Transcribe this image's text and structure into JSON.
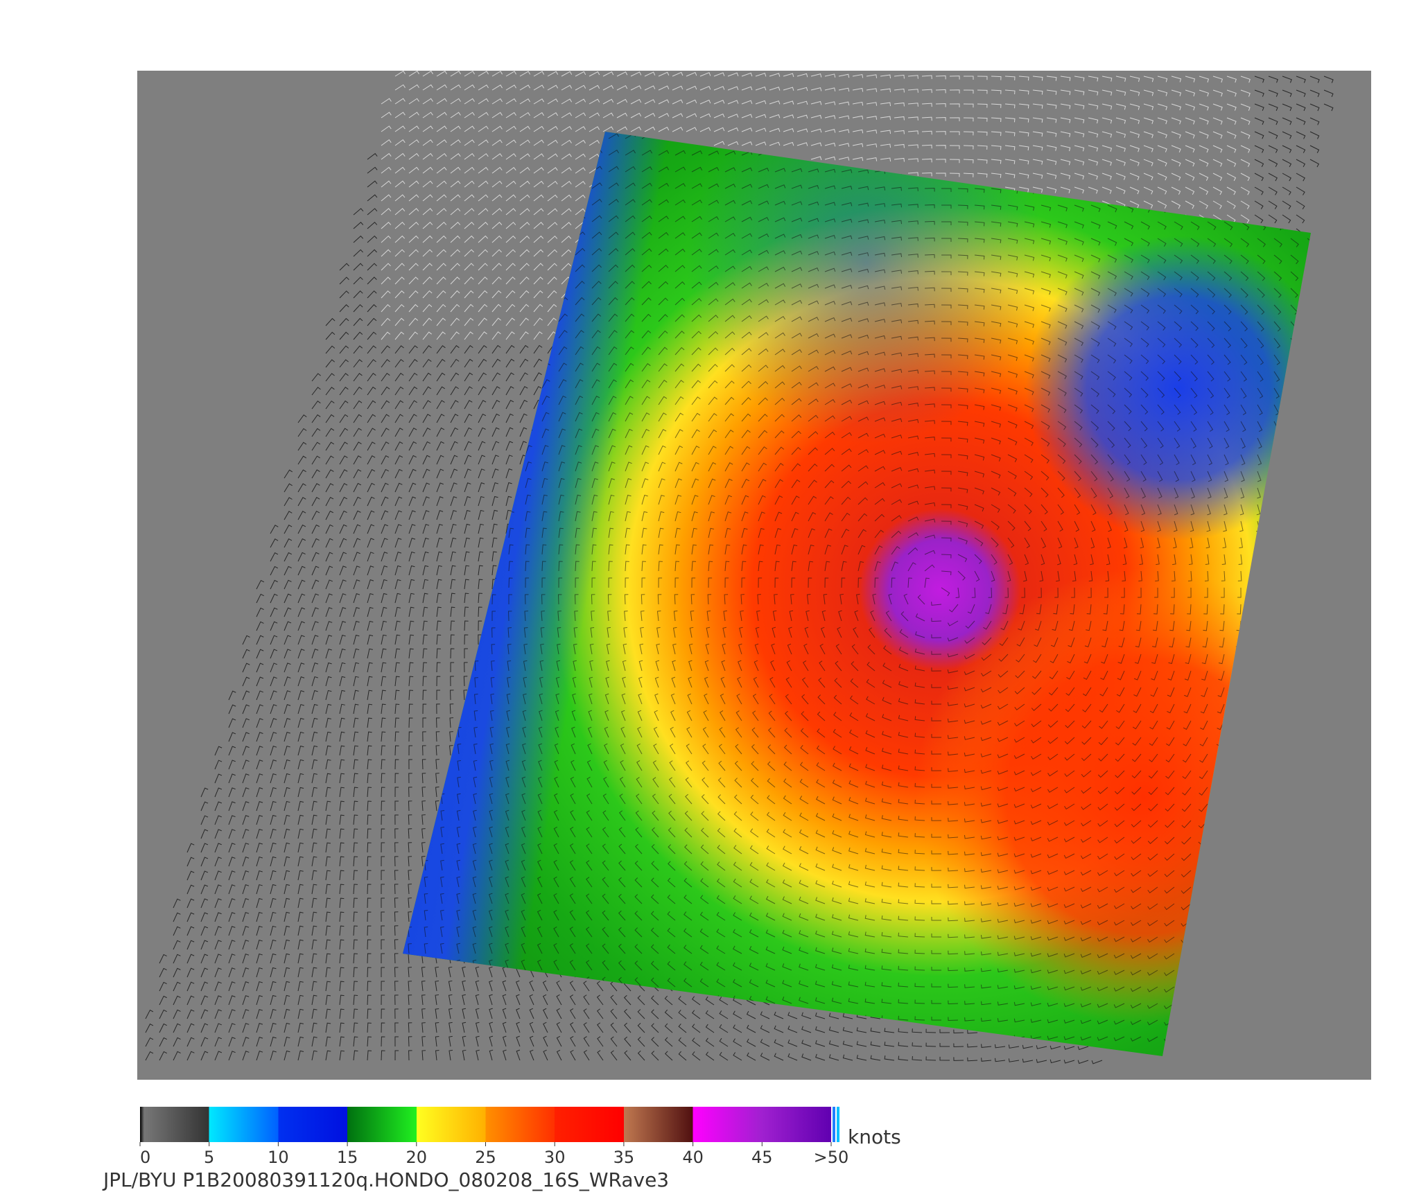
{
  "colorbar": {
    "ticks": [
      0,
      5,
      10,
      15,
      20,
      25,
      30,
      35,
      40,
      45,
      {
        "value": 50,
        "label": ">50"
      }
    ],
    "unit": "knots"
  },
  "caption": "JPL/BYU  P1B20080391120q.HONDO_080208_16S_WRave3"
}
